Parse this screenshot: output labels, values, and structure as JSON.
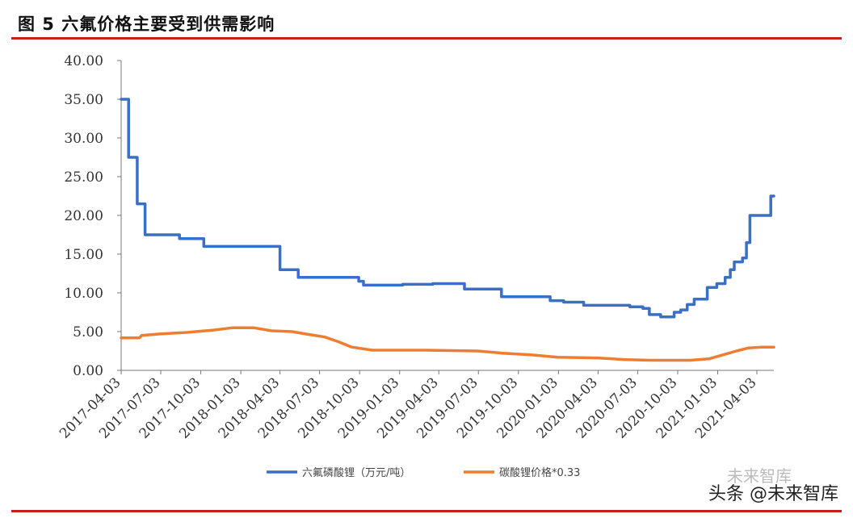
{
  "figure": {
    "title": "图 5 六氟价格主要受到供需影响"
  },
  "watermark": {
    "text": "头条 @未来智库",
    "faint_text": "未来智库"
  },
  "colors": {
    "series1": "#3a6fc6",
    "series2": "#ed7d31",
    "rule": "#c81e1e"
  },
  "chart_data": {
    "type": "line",
    "title": "图 5 六氟价格主要受到供需影响",
    "xlabel": "",
    "ylabel": "",
    "ylim": [
      0,
      40
    ],
    "yticks": [
      "0.00",
      "5.00",
      "10.00",
      "15.00",
      "20.00",
      "25.00",
      "30.00",
      "35.00",
      "40.00"
    ],
    "xticks": [
      "2017-04-03",
      "2017-07-03",
      "2017-10-03",
      "2018-01-03",
      "2018-04-03",
      "2018-07-03",
      "2018-10-03",
      "2019-01-03",
      "2019-04-03",
      "2019-07-03",
      "2019-10-03",
      "2020-01-03",
      "2020-04-03",
      "2020-07-03",
      "2020-10-03",
      "2021-01-03",
      "2021-04-03"
    ],
    "legend_position": "bottom",
    "series": [
      {
        "name": "六氟磷酸锂（万元/吨）",
        "step": true,
        "points": [
          [
            "2017-04-03",
            35.0
          ],
          [
            "2017-04-20",
            27.5
          ],
          [
            "2017-05-10",
            21.5
          ],
          [
            "2017-05-28",
            17.5
          ],
          [
            "2017-08-15",
            17.0
          ],
          [
            "2017-10-10",
            16.0
          ],
          [
            "2018-04-03",
            13.0
          ],
          [
            "2018-05-15",
            12.0
          ],
          [
            "2018-10-01",
            11.5
          ],
          [
            "2018-10-12",
            11.0
          ],
          [
            "2019-01-10",
            11.1
          ],
          [
            "2019-03-20",
            11.2
          ],
          [
            "2019-06-01",
            10.5
          ],
          [
            "2019-08-25",
            9.5
          ],
          [
            "2019-12-15",
            9.0
          ],
          [
            "2020-01-15",
            8.8
          ],
          [
            "2020-03-01",
            8.4
          ],
          [
            "2020-06-15",
            8.2
          ],
          [
            "2020-07-15",
            8.0
          ],
          [
            "2020-07-30",
            7.2
          ],
          [
            "2020-08-25",
            6.9
          ],
          [
            "2020-09-25",
            7.5
          ],
          [
            "2020-10-10",
            7.8
          ],
          [
            "2020-10-25",
            8.5
          ],
          [
            "2020-11-10",
            9.2
          ],
          [
            "2020-12-10",
            10.7
          ],
          [
            "2021-01-01",
            11.2
          ],
          [
            "2021-01-20",
            12.0
          ],
          [
            "2021-02-01",
            13.0
          ],
          [
            "2021-02-10",
            14.0
          ],
          [
            "2021-03-01",
            14.5
          ],
          [
            "2021-03-10",
            16.5
          ],
          [
            "2021-03-18",
            20.0
          ],
          [
            "2021-05-05",
            22.5
          ],
          [
            "2021-05-12",
            22.5
          ]
        ]
      },
      {
        "name": "碳酸锂价格*0.33",
        "step": false,
        "points": [
          [
            "2017-04-03",
            4.2
          ],
          [
            "2017-05-15",
            4.2
          ],
          [
            "2017-05-20",
            4.5
          ],
          [
            "2017-07-01",
            4.7
          ],
          [
            "2017-09-01",
            4.9
          ],
          [
            "2017-11-01",
            5.2
          ],
          [
            "2017-12-15",
            5.5
          ],
          [
            "2018-02-01",
            5.5
          ],
          [
            "2018-03-15",
            5.1
          ],
          [
            "2018-05-01",
            5.0
          ],
          [
            "2018-06-01",
            4.7
          ],
          [
            "2018-07-15",
            4.3
          ],
          [
            "2018-08-15",
            3.7
          ],
          [
            "2018-09-15",
            3.0
          ],
          [
            "2018-11-01",
            2.6
          ],
          [
            "2019-03-01",
            2.6
          ],
          [
            "2019-07-01",
            2.5
          ],
          [
            "2019-09-01",
            2.2
          ],
          [
            "2019-11-01",
            2.0
          ],
          [
            "2020-01-01",
            1.7
          ],
          [
            "2020-04-01",
            1.6
          ],
          [
            "2020-06-01",
            1.4
          ],
          [
            "2020-08-01",
            1.3
          ],
          [
            "2020-11-01",
            1.3
          ],
          [
            "2020-12-15",
            1.5
          ],
          [
            "2021-01-15",
            2.0
          ],
          [
            "2021-02-15",
            2.5
          ],
          [
            "2021-03-15",
            2.9
          ],
          [
            "2021-04-15",
            3.0
          ],
          [
            "2021-05-12",
            3.0
          ]
        ]
      }
    ]
  }
}
